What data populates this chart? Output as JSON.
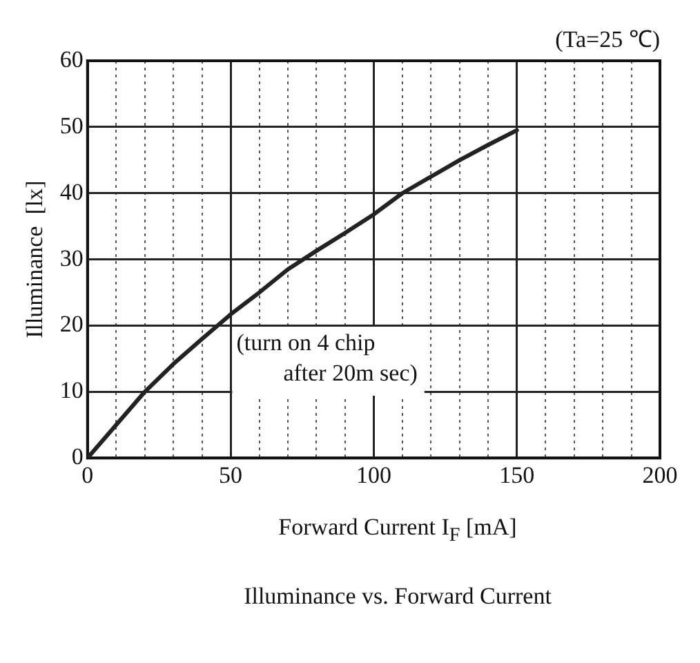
{
  "chart_data": {
    "type": "line",
    "title": "Illuminance vs. Forward Current",
    "xlabel": "Forward Current I$_{F}$ [mA]",
    "ylabel": "Illuminance  [lx]",
    "annotations": [
      "(Ta=25 ℃)",
      "(turn on 4 chip\n        after 20m sec)"
    ],
    "x": [
      0,
      10,
      20,
      30,
      40,
      50,
      60,
      70,
      80,
      90,
      100,
      110,
      120,
      130,
      140,
      150
    ],
    "series": [
      {
        "color": "#222222",
        "values": [
          0,
          5,
          10,
          14.2,
          18,
          21.7,
          25,
          28.5,
          31.3,
          34,
          36.8,
          40,
          42.5,
          45,
          47.3,
          49.5
        ]
      }
    ],
    "xlim": [
      0,
      200
    ],
    "ylim": [
      0,
      60
    ],
    "xticks": [
      0,
      {
        "value": 10,
        "label": null
      },
      {
        "value": 20,
        "label": null
      },
      {
        "value": 30,
        "label": null
      },
      {
        "value": 40,
        "label": null
      },
      50,
      {
        "value": 60,
        "label": null
      },
      {
        "value": 70,
        "label": null
      },
      {
        "value": 80,
        "label": null
      },
      {
        "value": 90,
        "label": null
      },
      100,
      {
        "value": 110,
        "label": null
      },
      {
        "value": 120,
        "label": null
      },
      {
        "value": 130,
        "label": null
      },
      {
        "value": 140,
        "label": null
      },
      150,
      {
        "value": 160,
        "label": null
      },
      {
        "value": 170,
        "label": null
      },
      {
        "value": 180,
        "label": null
      },
      {
        "value": 190,
        "label": null
      },
      200
    ],
    "yticks": [
      0,
      10,
      20,
      30,
      40,
      50,
      60
    ],
    "grid": true,
    "legend": false,
    "marker": "none",
    "line_style": "solid"
  }
}
